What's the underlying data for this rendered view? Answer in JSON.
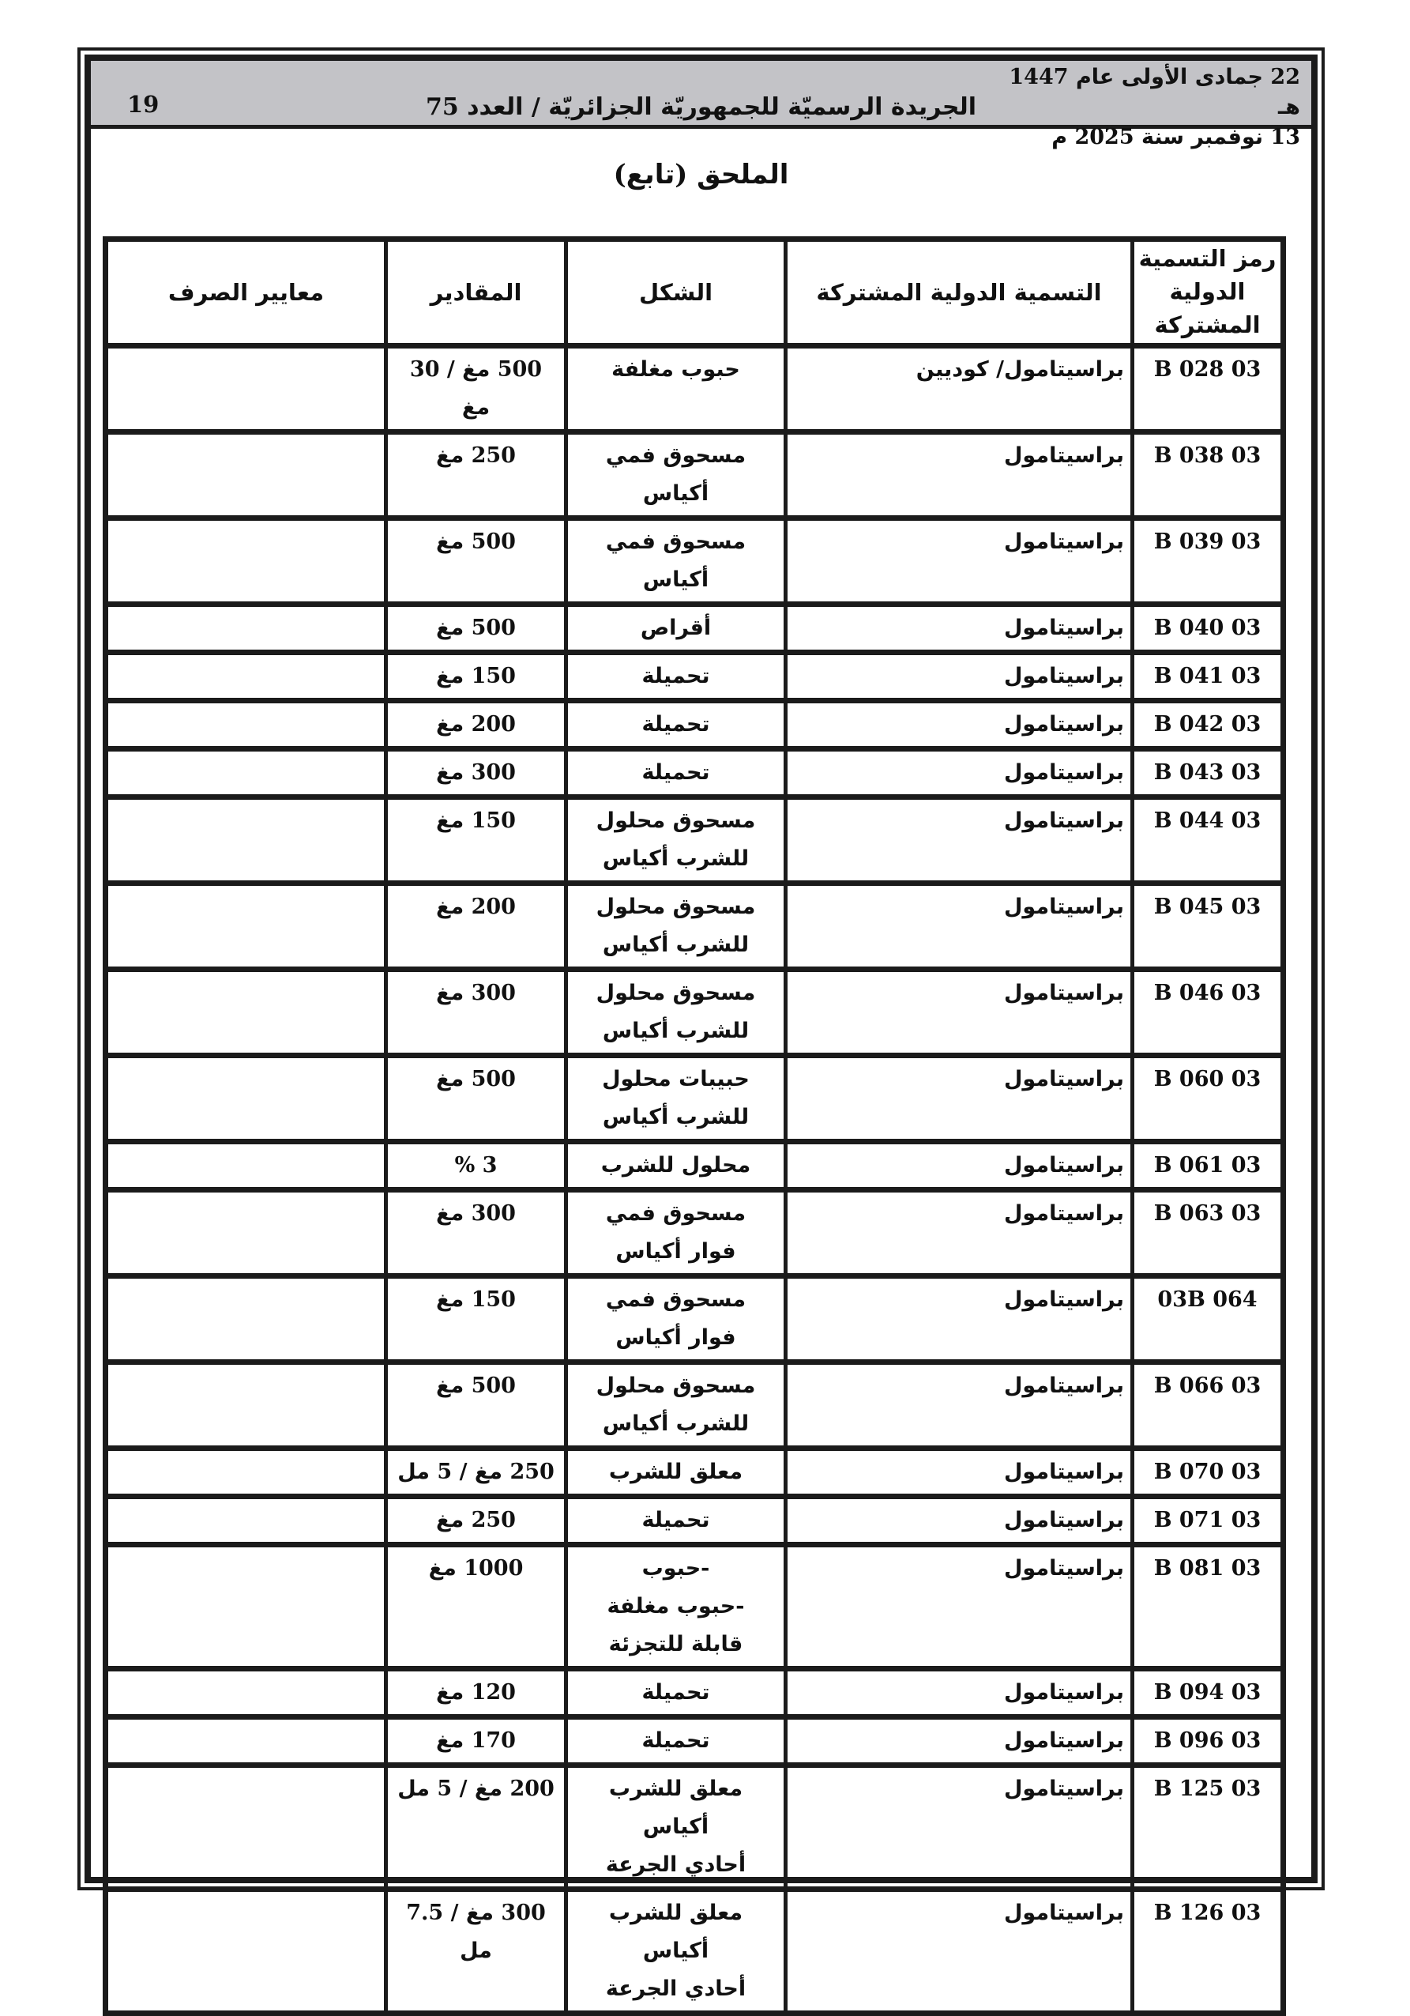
{
  "masthead": {
    "date_hijri": "22 جمادى الأولى عام 1447 هـ",
    "date_gregorian": "13 نوفمبر سنة 2025 م",
    "journal_title": "الجريدة الرسميّة للجمهوريّة الجزائريّة / العدد 75",
    "page_number": "19"
  },
  "annex_title": "الملحق (تابع)",
  "table": {
    "headers": {
      "code": "رمز التسمية\nالدولية\nالمشتركة",
      "name": "التسمية الدولية المشتركة",
      "form": "الشكل",
      "dosage": "المقادير",
      "criteria": "معايير الصرف"
    },
    "rows": [
      {
        "code": "03 B 028",
        "name": "براسيتامول/ كوديين",
        "form": "حبوب مغلفة",
        "dosage": "500 مغ / 30 مغ",
        "criteria": ""
      },
      {
        "code": "03 B 038",
        "name": "براسيتامول",
        "form": "مسحوق فمي أكياس",
        "dosage": "250 مغ",
        "criteria": ""
      },
      {
        "code": "03 B 039",
        "name": "براسيتامول",
        "form": "مسحوق فمي أكياس",
        "dosage": "500 مغ",
        "criteria": ""
      },
      {
        "code": "03 B 040",
        "name": "براسيتامول",
        "form": "أقراص",
        "dosage": "500 مغ",
        "criteria": ""
      },
      {
        "code": "03 B 041",
        "name": "براسيتامول",
        "form": "تحميلة",
        "dosage": "150 مغ",
        "criteria": ""
      },
      {
        "code": "03 B 042",
        "name": "براسيتامول",
        "form": "تحميلة",
        "dosage": "200 مغ",
        "criteria": ""
      },
      {
        "code": "03 B 043",
        "name": "براسيتامول",
        "form": "تحميلة",
        "dosage": "300 مغ",
        "criteria": ""
      },
      {
        "code": "03 B 044",
        "name": "براسيتامول",
        "form": "مسحوق محلول\nللشرب أكياس",
        "dosage": "150 مغ",
        "criteria": ""
      },
      {
        "code": "03 B 045",
        "name": "براسيتامول",
        "form": "مسحوق محلول\nللشرب أكياس",
        "dosage": "200 مغ",
        "criteria": ""
      },
      {
        "code": "03 B 046",
        "name": "براسيتامول",
        "form": "مسحوق محلول\nللشرب أكياس",
        "dosage": "300 مغ",
        "criteria": ""
      },
      {
        "code": "03 B 060",
        "name": "براسيتامول",
        "form": "حبيبات محلول\nللشرب أكياس",
        "dosage": "500 مغ",
        "criteria": ""
      },
      {
        "code": "03 B 061",
        "name": "براسيتامول",
        "form": "محلول للشرب",
        "dosage": "3 %",
        "criteria": ""
      },
      {
        "code": "03 B 063",
        "name": "براسيتامول",
        "form": "مسحوق فمي\nفوار أكياس",
        "dosage": "300 مغ",
        "criteria": ""
      },
      {
        "code": "03B 064",
        "name": "براسيتامول",
        "form": "مسحوق فمي\nفوار أكياس",
        "dosage": "150 مغ",
        "criteria": ""
      },
      {
        "code": "03 B 066",
        "name": "براسيتامول",
        "form": "مسحوق محلول\nللشرب أكياس",
        "dosage": "500 مغ",
        "criteria": ""
      },
      {
        "code": "03 B 070",
        "name": "براسيتامول",
        "form": "معلق للشرب",
        "dosage": "250 مغ / 5 مل",
        "criteria": ""
      },
      {
        "code": "03 B 071",
        "name": "براسيتامول",
        "form": "تحميلة",
        "dosage": "250 مغ",
        "criteria": ""
      },
      {
        "code": "03 B 081",
        "name": "براسيتامول",
        "form": "-حبوب\n-حبوب مغلفة\nقابلة للتجزئة",
        "dosage": "1000 مغ",
        "criteria": ""
      },
      {
        "code": "03 B 094",
        "name": "براسيتامول",
        "form": "تحميلة",
        "dosage": "120 مغ",
        "criteria": ""
      },
      {
        "code": "03 B 096",
        "name": "براسيتامول",
        "form": "تحميلة",
        "dosage": "170 مغ",
        "criteria": ""
      },
      {
        "code": "03 B 125",
        "name": "براسيتامول",
        "form": "معلق للشرب أكياس\nأحادي الجرعة",
        "dosage": "200 مغ / 5 مل",
        "criteria": ""
      },
      {
        "code": "03 B 126",
        "name": "براسيتامول",
        "form": "معلق للشرب أكياس\nأحادي الجرعة",
        "dosage": "300 مغ / 7.5 مل",
        "criteria": ""
      }
    ]
  }
}
